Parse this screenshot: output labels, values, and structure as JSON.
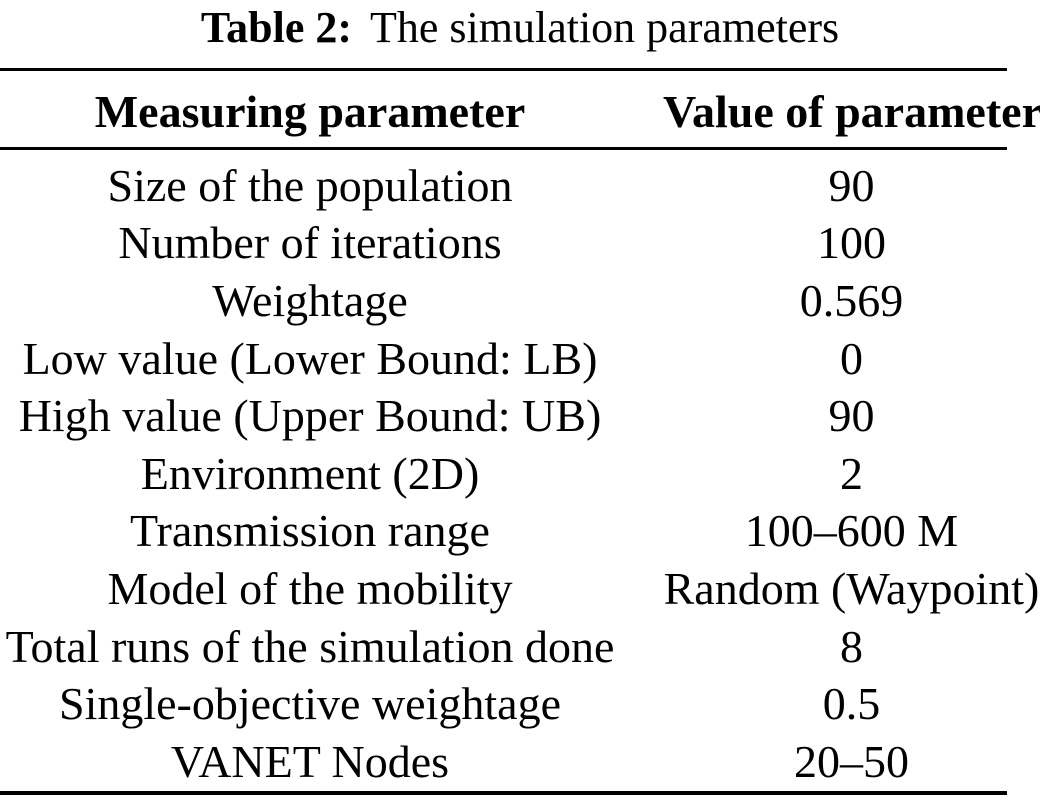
{
  "caption": {
    "label": "Table 2:",
    "text": "The simulation parameters"
  },
  "table": {
    "headers": [
      "Measuring parameter",
      "Value of parameter"
    ],
    "rows": [
      [
        "Size of the population",
        "90"
      ],
      [
        "Number of iterations",
        "100"
      ],
      [
        "Weightage",
        "0.569"
      ],
      [
        "Low value (Lower Bound: LB)",
        "0"
      ],
      [
        "High value (Upper Bound: UB)",
        "90"
      ],
      [
        "Environment (2D)",
        "2"
      ],
      [
        "Transmission range",
        "100–600 M"
      ],
      [
        "Model of the mobility",
        "Random (Waypoint)"
      ],
      [
        "Total runs of the simulation done",
        "8"
      ],
      [
        "Single-objective weightage",
        "0.5"
      ],
      [
        "VANET Nodes",
        "20–50"
      ]
    ]
  },
  "colors": {
    "text": "#000000",
    "background": "#ffffff",
    "rule": "#000000"
  }
}
